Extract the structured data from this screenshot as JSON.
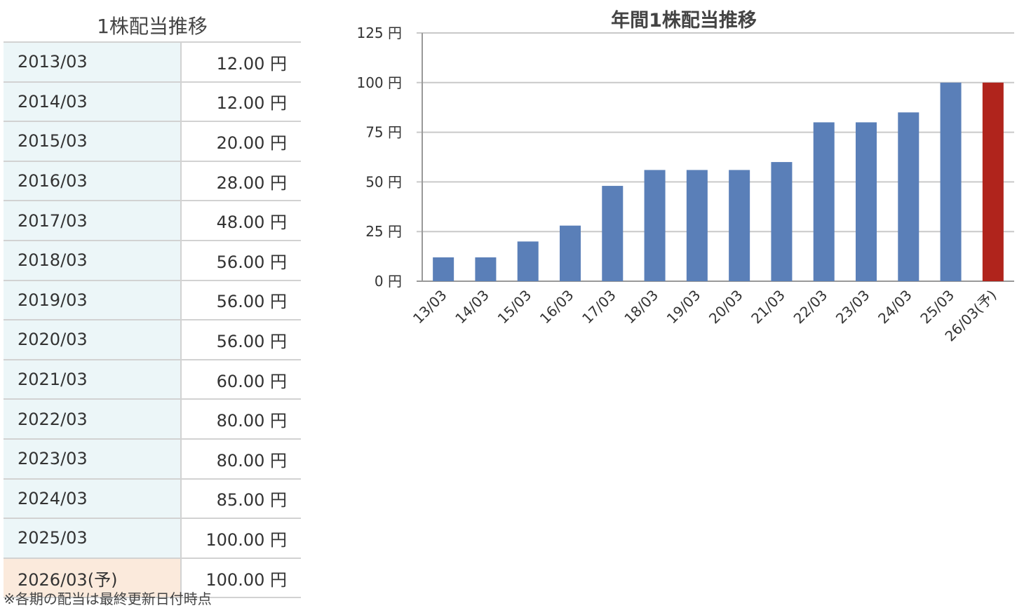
{
  "table": {
    "title": "1株配当推移",
    "rows": [
      {
        "period": "2013/03",
        "value": "12.00 円"
      },
      {
        "period": "2014/03",
        "value": "12.00 円"
      },
      {
        "period": "2015/03",
        "value": "20.00 円"
      },
      {
        "period": "2016/03",
        "value": "28.00 円"
      },
      {
        "period": "2017/03",
        "value": "48.00 円"
      },
      {
        "period": "2018/03",
        "value": "56.00 円"
      },
      {
        "period": "2019/03",
        "value": "56.00 円"
      },
      {
        "period": "2020/03",
        "value": "56.00 円"
      },
      {
        "period": "2021/03",
        "value": "60.00 円"
      },
      {
        "period": "2022/03",
        "value": "80.00 円"
      },
      {
        "period": "2023/03",
        "value": "80.00 円"
      },
      {
        "period": "2024/03",
        "value": "85.00 円"
      },
      {
        "period": "2025/03",
        "value": "100.00 円"
      },
      {
        "period": "2026/03(予)",
        "value": "100.00 円"
      }
    ],
    "footnote": "※各期の配当は最終更新日付時点"
  },
  "colors": {
    "actual_bar": "#5a7fb8",
    "forecast_bar": "#b0241c",
    "period_cell_bg": "#ecf6f8",
    "forecast_cell_bg": "#fbeadc",
    "gridline": "#c9c9c9"
  },
  "chart_data": {
    "type": "bar",
    "title": "年間1株配当推移",
    "categories": [
      "13/03",
      "14/03",
      "15/03",
      "16/03",
      "17/03",
      "18/03",
      "19/03",
      "20/03",
      "21/03",
      "22/03",
      "23/03",
      "24/03",
      "25/03",
      "26/03(予)"
    ],
    "values": [
      12,
      12,
      20,
      28,
      48,
      56,
      56,
      56,
      60,
      80,
      80,
      85,
      100,
      100
    ],
    "forecast_index": 13,
    "ylim": [
      0,
      125
    ],
    "yticks": [
      0,
      25,
      50,
      75,
      100,
      125
    ],
    "ytick_suffix": " 円",
    "xlabel": "",
    "ylabel": "",
    "grid": true,
    "legend": "none"
  }
}
